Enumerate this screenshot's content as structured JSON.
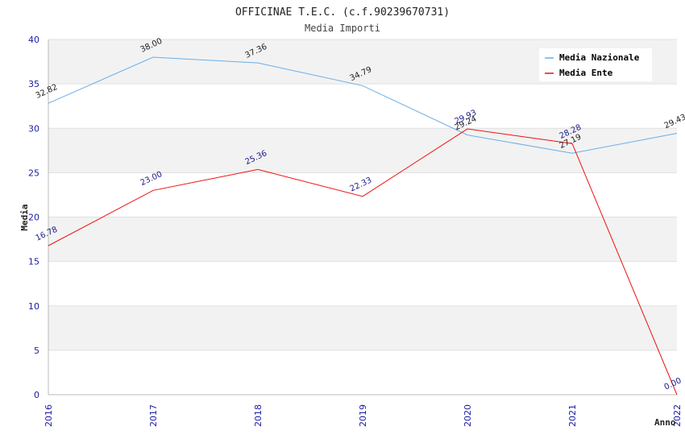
{
  "chart_data": {
    "type": "line",
    "title": "OFFICINAE T.E.C. (c.f.90239670731)",
    "subtitle": "Media Importi",
    "xlabel": "Anno",
    "ylabel": "Media",
    "categories": [
      "2016",
      "2017",
      "2018",
      "2019",
      "2020",
      "2021",
      "2022"
    ],
    "ylim": [
      0,
      40
    ],
    "yticks": [
      0,
      5,
      10,
      15,
      20,
      25,
      30,
      35,
      40
    ],
    "grid": true,
    "legend_position": "top-right",
    "series": [
      {
        "name": "Media Nazionale",
        "color": "#6aaee8",
        "label_color": "#222222",
        "values": [
          32.82,
          38.0,
          37.36,
          34.79,
          29.24,
          27.19,
          29.43
        ],
        "labels": [
          "32.82",
          "38.00",
          "37.36",
          "34.79",
          "29.24",
          "27.19",
          "29.43"
        ]
      },
      {
        "name": "Media Ente",
        "color": "#ee1111",
        "label_color": "#1a1a8c",
        "values": [
          16.78,
          23.0,
          25.36,
          22.33,
          29.93,
          28.28,
          0.0
        ],
        "labels": [
          "16.78",
          "23.00",
          "25.36",
          "22.33",
          "29.93",
          "28.28",
          "0.00"
        ]
      }
    ]
  }
}
